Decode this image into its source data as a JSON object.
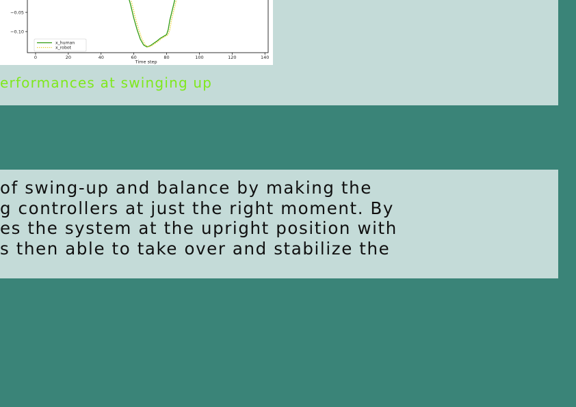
{
  "chart_data": {
    "type": "line",
    "xlabel": "Time step",
    "xlim": [
      -5,
      142
    ],
    "ylim": [
      -0.155,
      0.0
    ],
    "x_ticks": [
      0,
      20,
      40,
      60,
      80,
      100,
      120,
      140
    ],
    "y_ticks": [
      -0.05,
      -0.1
    ],
    "x_tick_labels": [
      "0",
      "20",
      "40",
      "60",
      "80",
      "100",
      "120",
      "140"
    ],
    "y_tick_labels": [
      "−0.05",
      "−0.10"
    ],
    "legend_position": "lower-left",
    "series": [
      {
        "name": "x_human",
        "color": "#2f9a0f",
        "style": "solid",
        "x": [
          56,
          58,
          60,
          62,
          64,
          66,
          68,
          70,
          72,
          74,
          76,
          78,
          80,
          81,
          82,
          84,
          86
        ],
        "y": [
          0.0,
          -0.03,
          -0.065,
          -0.095,
          -0.12,
          -0.135,
          -0.14,
          -0.137,
          -0.131,
          -0.125,
          -0.118,
          -0.113,
          -0.108,
          -0.095,
          -0.07,
          -0.035,
          0.0
        ]
      },
      {
        "name": "x_robot",
        "color": "#e8d33a",
        "style": "dotted",
        "x": [
          57,
          59,
          61,
          63,
          65,
          67,
          69,
          71,
          73,
          75,
          77,
          79,
          81,
          82,
          83,
          85,
          87
        ],
        "y": [
          0.0,
          -0.03,
          -0.065,
          -0.095,
          -0.12,
          -0.135,
          -0.14,
          -0.137,
          -0.131,
          -0.125,
          -0.118,
          -0.113,
          -0.108,
          -0.095,
          -0.07,
          -0.035,
          0.0
        ]
      }
    ]
  },
  "caption": "erformances at swinging up",
  "paragraph": {
    "lines": [
      "of swing-up and balance by making the",
      "g controllers at just the right moment. By",
      "es the system at the upright position with",
      "s then able to take over and stabilize the"
    ]
  },
  "colors": {
    "background": "#3a8478",
    "panel": "#c4dbd8",
    "caption": "#7fe81c"
  }
}
